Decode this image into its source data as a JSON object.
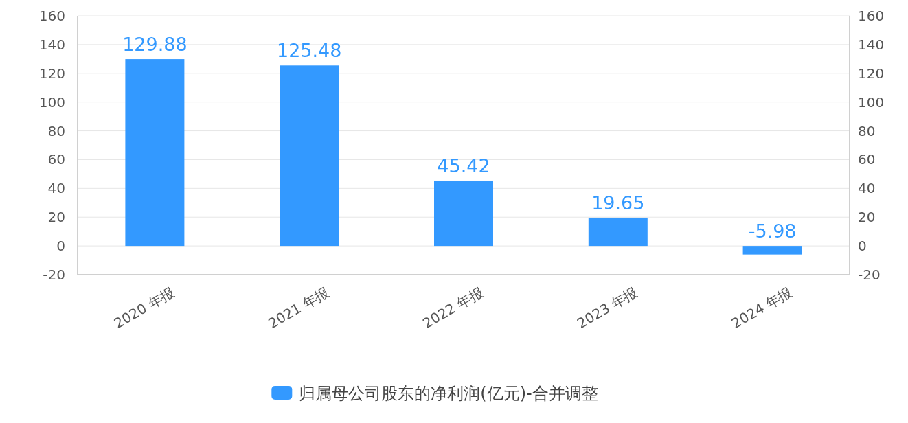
{
  "chart_data": {
    "type": "bar",
    "categories": [
      "2020 年报",
      "2021 年报",
      "2022 年报",
      "2023 年报",
      "2024 年报"
    ],
    "series": [
      {
        "name": "归属母公司股东的净利润(亿元)-合并调整",
        "color": "#3399ff",
        "values": [
          129.88,
          125.48,
          45.42,
          19.65,
          -5.98
        ]
      }
    ],
    "ylim": [
      -20,
      160
    ],
    "yticks": [
      -20,
      0,
      20,
      40,
      60,
      80,
      100,
      120,
      140,
      160
    ],
    "y2lim": [
      -20,
      160
    ],
    "y2ticks": [
      -20,
      0,
      20,
      40,
      60,
      80,
      100,
      120,
      140,
      160
    ],
    "grid": "y",
    "legend": "bottom",
    "data_labels": true
  }
}
